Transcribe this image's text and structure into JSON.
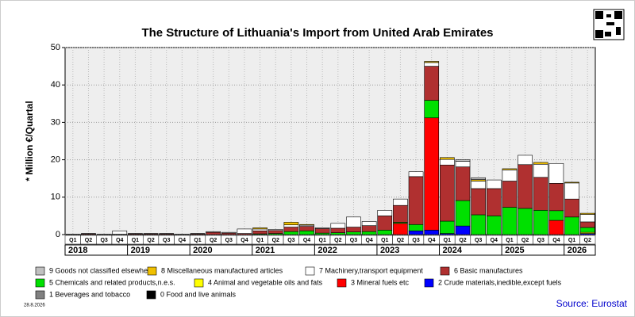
{
  "chart_data": {
    "type": "bar",
    "stacked": true,
    "title": "The Structure of Lithuania's Import from United Arab Emirates",
    "ylabel": "* Million €/Quartal",
    "categories": [
      "Q1",
      "Q2",
      "Q3",
      "Q4",
      "Q1",
      "Q2",
      "Q3",
      "Q4",
      "Q1",
      "Q2",
      "Q3",
      "Q4",
      "Q1",
      "Q2",
      "Q3",
      "Q4",
      "Q1",
      "Q2",
      "Q3",
      "Q4",
      "Q1",
      "Q2",
      "Q3",
      "Q4",
      "Q1",
      "Q2",
      "Q3",
      "Q4",
      "Q1",
      "Q2",
      "Q3",
      "Q4",
      "Q1",
      "Q2"
    ],
    "years": [
      "2018",
      "2019",
      "2020",
      "2021",
      "2022",
      "2023",
      "2024",
      "2025",
      "2026"
    ],
    "ylim": [
      0,
      50
    ],
    "yticks": [
      0,
      10,
      20,
      30,
      40,
      50
    ],
    "grid": true,
    "series": [
      {
        "name": "9 Goods not classified elsewhere",
        "color": "#c0c0c0",
        "values": [
          0,
          0,
          0,
          0,
          0,
          0,
          0,
          0,
          0,
          0,
          0,
          0,
          0,
          0,
          0,
          0,
          0,
          0,
          0,
          0,
          0,
          0,
          0,
          0,
          0,
          0.4,
          0.5,
          0,
          0,
          0,
          0,
          0,
          0,
          0
        ]
      },
      {
        "name": "8 Miscellaneous manufactured articles",
        "color": "#f0c000",
        "values": [
          0,
          0,
          0,
          0,
          0,
          0,
          0,
          0,
          0,
          0,
          0,
          0,
          0.3,
          0,
          0.7,
          0.2,
          0,
          0,
          0,
          0,
          0,
          0,
          0,
          0.3,
          0.5,
          0,
          0.4,
          0,
          0.3,
          0,
          0.5,
          0,
          0.2,
          0.3
        ]
      },
      {
        "name": "7 Machinery,transport equipment",
        "color": "#ffffff",
        "values": [
          0,
          0.1,
          0.1,
          0.9,
          0.1,
          0.1,
          0.1,
          0.1,
          0.1,
          0.2,
          0.2,
          1.2,
          0.5,
          0.3,
          0.6,
          0.3,
          0.2,
          1.3,
          2.7,
          1.1,
          1.5,
          1.7,
          1.3,
          1.0,
          1.5,
          1.5,
          2.0,
          2.3,
          3.0,
          2.5,
          3.5,
          5.3,
          4.3,
          2.0
        ]
      },
      {
        "name": "6 Basic manufactures",
        "color": "#b03030",
        "values": [
          0.1,
          0.2,
          0,
          0.1,
          0.2,
          0.2,
          0.2,
          0,
          0.2,
          0.6,
          0.4,
          0.3,
          0.8,
          0.8,
          1.2,
          1.2,
          1.2,
          1.2,
          1.3,
          1.6,
          3.8,
          4.5,
          12.8,
          9.1,
          15.0,
          9.0,
          7.0,
          7.3,
          7.0,
          11.7,
          8.8,
          7.3,
          4.8,
          1.5
        ]
      },
      {
        "name": "5 Chemicals and related products,n.e.s.",
        "color": "#00e000",
        "values": [
          0,
          0,
          0,
          0,
          0,
          0,
          0,
          0,
          0,
          0,
          0,
          0,
          0.2,
          0.3,
          0.8,
          1.0,
          0.4,
          0.5,
          0.7,
          0.8,
          1.2,
          0.3,
          1.7,
          4.7,
          3.3,
          6.8,
          5.3,
          5.0,
          7.3,
          7.0,
          6.5,
          2.6,
          4.7,
          1.3
        ]
      },
      {
        "name": "4 Animal and vegetable oils and fats",
        "color": "#ffff00",
        "values": [
          0,
          0,
          0,
          0,
          0,
          0,
          0,
          0,
          0,
          0,
          0,
          0,
          0,
          0,
          0,
          0,
          0,
          0,
          0,
          0,
          0,
          0,
          0,
          0,
          0,
          0,
          0,
          0,
          0,
          0,
          0,
          0,
          0,
          0.3
        ]
      },
      {
        "name": "3 Mineral fuels etc",
        "color": "#ff0000",
        "values": [
          0,
          0,
          0,
          0,
          0,
          0,
          0,
          0,
          0,
          0,
          0,
          0,
          0,
          0,
          0,
          0,
          0,
          0,
          0,
          0,
          0,
          3.0,
          0,
          30.0,
          0,
          0,
          0,
          0,
          0,
          0,
          0,
          3.8,
          0,
          0
        ]
      },
      {
        "name": "2 Crude materials,inedible,except fuels",
        "color": "#0000ff",
        "values": [
          0,
          0,
          0,
          0,
          0,
          0,
          0,
          0,
          0,
          0,
          0,
          0,
          0,
          0,
          0,
          0,
          0,
          0,
          0,
          0,
          0,
          0,
          1.0,
          1.2,
          0.3,
          2.3,
          0,
          0,
          0,
          0,
          0,
          0,
          0,
          0.3
        ]
      },
      {
        "name": "1 Beverages and tobacco",
        "color": "#808080",
        "values": [
          0,
          0,
          0,
          0,
          0,
          0,
          0,
          0,
          0,
          0,
          0,
          0,
          0,
          0,
          0,
          0,
          0,
          0,
          0,
          0,
          0,
          0,
          0,
          0,
          0,
          0,
          0,
          0,
          0,
          0,
          0,
          0,
          0,
          0
        ]
      },
      {
        "name": "0 Food and live animals",
        "color": "#000000",
        "values": [
          0,
          0,
          0,
          0,
          0,
          0,
          0,
          0,
          0,
          0,
          0,
          0,
          0,
          0,
          0,
          0,
          0,
          0,
          0,
          0,
          0,
          0,
          0,
          0,
          0,
          0,
          0,
          0,
          0,
          0,
          0,
          0,
          0,
          0
        ]
      }
    ]
  },
  "date": "28.8.2026",
  "source": "Source: Eurostat"
}
